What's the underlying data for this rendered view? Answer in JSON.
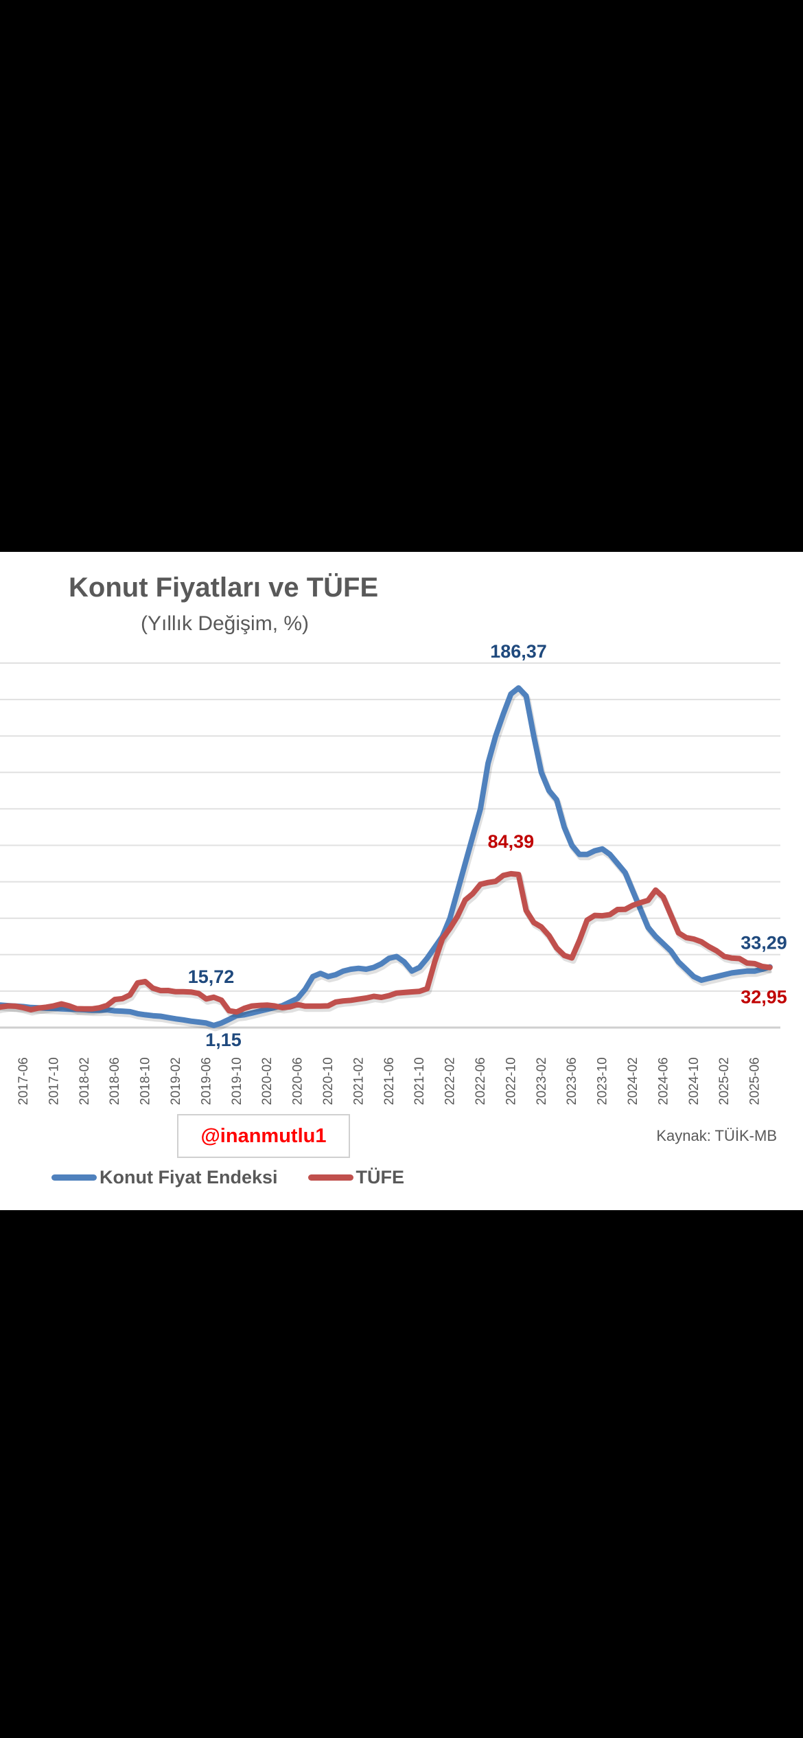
{
  "chart_data": {
    "type": "line",
    "title": "Konut Fiyatları ve TÜFE",
    "subtitle": "(Yıllık Değişim, %)",
    "xlabel": "",
    "ylabel": "",
    "ylim": [
      0,
      200
    ],
    "y_grid_step": 20,
    "grid": true,
    "legend_position": "bottom-left",
    "x_start": "2017-02",
    "x_end": "2025-08",
    "x_tick_labels": [
      "2017-06",
      "2017-10",
      "2018-02",
      "2018-06",
      "2018-10",
      "2019-02",
      "2019-06",
      "2019-10",
      "2020-02",
      "2020-06",
      "2020-10",
      "2021-02",
      "2021-06",
      "2021-10",
      "2022-02",
      "2022-06",
      "2022-10",
      "2023-02",
      "2023-06",
      "2023-10",
      "2024-02",
      "2024-06",
      "2024-10",
      "2025-02",
      "2025-06"
    ],
    "series": [
      {
        "name": "Konut Fiyat Endeksi",
        "color": "#4F81BD",
        "label_color": "#1F497D",
        "values": [
          12.5,
          12.3,
          12,
          11.8,
          11.5,
          11,
          10.8,
          10.6,
          10.5,
          10.3,
          10.1,
          10,
          9.8,
          9.5,
          9.5,
          9.7,
          9.2,
          9,
          8.7,
          7.6,
          7,
          6.5,
          6.2,
          5.5,
          4.8,
          4.2,
          3.5,
          3,
          2.5,
          1.15,
          2.5,
          4.5,
          6.5,
          7,
          8,
          9,
          10,
          11,
          12,
          14,
          16,
          21,
          28,
          29.7,
          28,
          29,
          31,
          32,
          32.5,
          32,
          33,
          35,
          38,
          39,
          36,
          31,
          33,
          38,
          44,
          50,
          60,
          75,
          90,
          105,
          120,
          145,
          160,
          172,
          183,
          186.37,
          182,
          160,
          140,
          130,
          125,
          110,
          100,
          95,
          95,
          97,
          98,
          95,
          90,
          85,
          75,
          65,
          55,
          50,
          46,
          42,
          36,
          32,
          28,
          26,
          27,
          28,
          29,
          30,
          30.5,
          31,
          31,
          32,
          33.29
        ],
        "data_labels": [
          {
            "value": "186,37",
            "index": 69
          },
          {
            "value": "15,72",
            "index": 29,
            "dx": -4,
            "dy": -62
          },
          {
            "value": "1,15",
            "index": 29,
            "below": true
          },
          {
            "value": "33,29",
            "index": 102
          }
        ]
      },
      {
        "name": "TÜFE",
        "color": "#C0504D",
        "label_color": "#C00000",
        "values": [
          10.13,
          11.29,
          11.87,
          11.72,
          10.9,
          9.79,
          10.68,
          11.2,
          11.9,
          12.98,
          11.92,
          10.35,
          10.26,
          10.23,
          10.85,
          12.15,
          15.39,
          15.85,
          17.9,
          24.52,
          25.24,
          21.62,
          20.3,
          20.35,
          19.67,
          19.71,
          19.5,
          18.71,
          15.72,
          16.65,
          15.01,
          9.26,
          8.55,
          10.56,
          11.84,
          12.15,
          12.37,
          11.86,
          10.94,
          11.39,
          12.62,
          11.76,
          11.77,
          11.75,
          11.89,
          14.03,
          14.6,
          14.97,
          15.61,
          16.19,
          17.14,
          16.59,
          17.53,
          18.95,
          19.25,
          19.58,
          19.89,
          21.31,
          36.08,
          48.69,
          54.44,
          61.14,
          69.97,
          73.5,
          78.62,
          79.6,
          80.21,
          83.45,
          84.39,
          84.0,
          64.27,
          57.68,
          55.18,
          50.51,
          43.68,
          39.59,
          38.21,
          47.83,
          58.94,
          61.53,
          61.36,
          61.98,
          64.77,
          64.86,
          67.07,
          68.5,
          69.8,
          75.45,
          71.6,
          61.78,
          51.97,
          49.38,
          48.58,
          47.09,
          44.38,
          42.12,
          39.05,
          38.1,
          37.86,
          35.41,
          35.05,
          33.52,
          32.95
        ],
        "data_labels": [
          {
            "value": "84,39",
            "index": 68
          },
          {
            "value": "32,95",
            "index": 102,
            "below": true
          }
        ]
      }
    ]
  },
  "watermark": "@inanmutlu1",
  "source": "Kaynak: TÜİK-MB"
}
